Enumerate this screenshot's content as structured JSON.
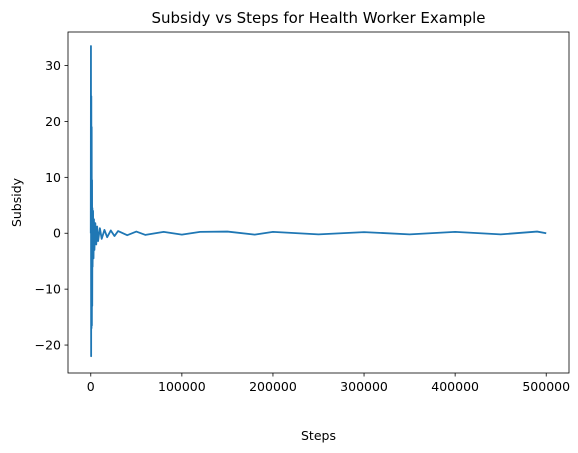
{
  "chart_data": {
    "type": "line",
    "title": "Subsidy vs Steps for Health Worker Example",
    "xlabel": "Steps",
    "ylabel": "Subsidy",
    "xlim": [
      -25000,
      525000
    ],
    "ylim": [
      -25,
      36
    ],
    "x_ticks": [
      0,
      100000,
      200000,
      300000,
      400000,
      500000
    ],
    "y_ticks": [
      -20,
      -10,
      0,
      10,
      20,
      30
    ],
    "grid": false,
    "legend": "none",
    "color": "#1f77b4",
    "series": [
      {
        "x": [
          0,
          200,
          400,
          600,
          800,
          1000,
          1200,
          1400,
          1600,
          1800,
          2000,
          2500,
          3000,
          3500,
          4000,
          5000,
          6000,
          7000,
          8000,
          10000,
          12000,
          15000,
          18000,
          22000,
          26000,
          30000,
          40000,
          50000,
          60000,
          80000,
          100000,
          120000,
          150000,
          180000,
          200000,
          250000,
          300000,
          350000,
          400000,
          450000,
          490000,
          500000
        ],
        "y": [
          0,
          33.5,
          -22,
          24.5,
          -17,
          19,
          -16.5,
          9.5,
          -13,
          4.5,
          -6,
          4,
          -4.5,
          2.5,
          -3,
          1.8,
          -2,
          1.2,
          -1.4,
          0.9,
          -1,
          0.6,
          -0.7,
          0.5,
          -0.5,
          0.4,
          -0.35,
          0.3,
          -0.3,
          0.25,
          -0.25,
          0.25,
          0.3,
          -0.25,
          0.25,
          -0.2,
          0.2,
          -0.2,
          0.25,
          -0.2,
          0.3,
          0
        ]
      }
    ]
  }
}
